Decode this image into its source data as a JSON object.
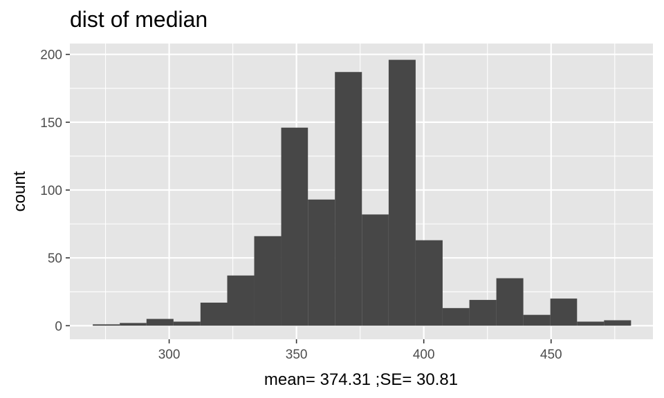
{
  "chart_data": {
    "type": "bar",
    "title": "dist of median",
    "xlabel": "mean= 374.31 ;SE= 30.81",
    "ylabel": "count",
    "xlim": [
      261,
      490
    ],
    "ylim": [
      -10,
      208
    ],
    "x_ticks": [
      300,
      350,
      400,
      450
    ],
    "x_tick_labels": [
      "300",
      "350",
      "400",
      "450"
    ],
    "x_minor_ticks": [
      275,
      325,
      375,
      425,
      475
    ],
    "y_ticks": [
      0,
      50,
      100,
      150,
      200
    ],
    "y_tick_labels": [
      "0",
      "50",
      "100",
      "150",
      "200"
    ],
    "y_minor_ticks": [
      25,
      75,
      125,
      175
    ],
    "grid": true,
    "bar_color": "#474747",
    "panel_background": "#e5e5e5",
    "grid_color": "#ffffff",
    "bins": [
      {
        "x0": 270.0,
        "x1": 280.6,
        "count": 1
      },
      {
        "x0": 280.6,
        "x1": 291.1,
        "count": 2
      },
      {
        "x0": 291.1,
        "x1": 301.7,
        "count": 5
      },
      {
        "x0": 301.7,
        "x1": 312.3,
        "count": 3
      },
      {
        "x0": 312.3,
        "x1": 322.8,
        "count": 17
      },
      {
        "x0": 322.8,
        "x1": 333.4,
        "count": 37
      },
      {
        "x0": 333.4,
        "x1": 344.0,
        "count": 66
      },
      {
        "x0": 344.0,
        "x1": 354.5,
        "count": 146
      },
      {
        "x0": 354.5,
        "x1": 365.1,
        "count": 93
      },
      {
        "x0": 365.1,
        "x1": 375.7,
        "count": 187
      },
      {
        "x0": 375.7,
        "x1": 386.2,
        "count": 82
      },
      {
        "x0": 386.2,
        "x1": 396.8,
        "count": 196
      },
      {
        "x0": 396.8,
        "x1": 407.4,
        "count": 63
      },
      {
        "x0": 407.4,
        "x1": 417.9,
        "count": 13
      },
      {
        "x0": 417.9,
        "x1": 428.5,
        "count": 19
      },
      {
        "x0": 428.5,
        "x1": 439.1,
        "count": 35
      },
      {
        "x0": 439.1,
        "x1": 449.7,
        "count": 8
      },
      {
        "x0": 449.7,
        "x1": 460.2,
        "count": 20
      },
      {
        "x0": 460.2,
        "x1": 470.8,
        "count": 3
      },
      {
        "x0": 470.8,
        "x1": 481.4,
        "count": 4
      }
    ]
  }
}
